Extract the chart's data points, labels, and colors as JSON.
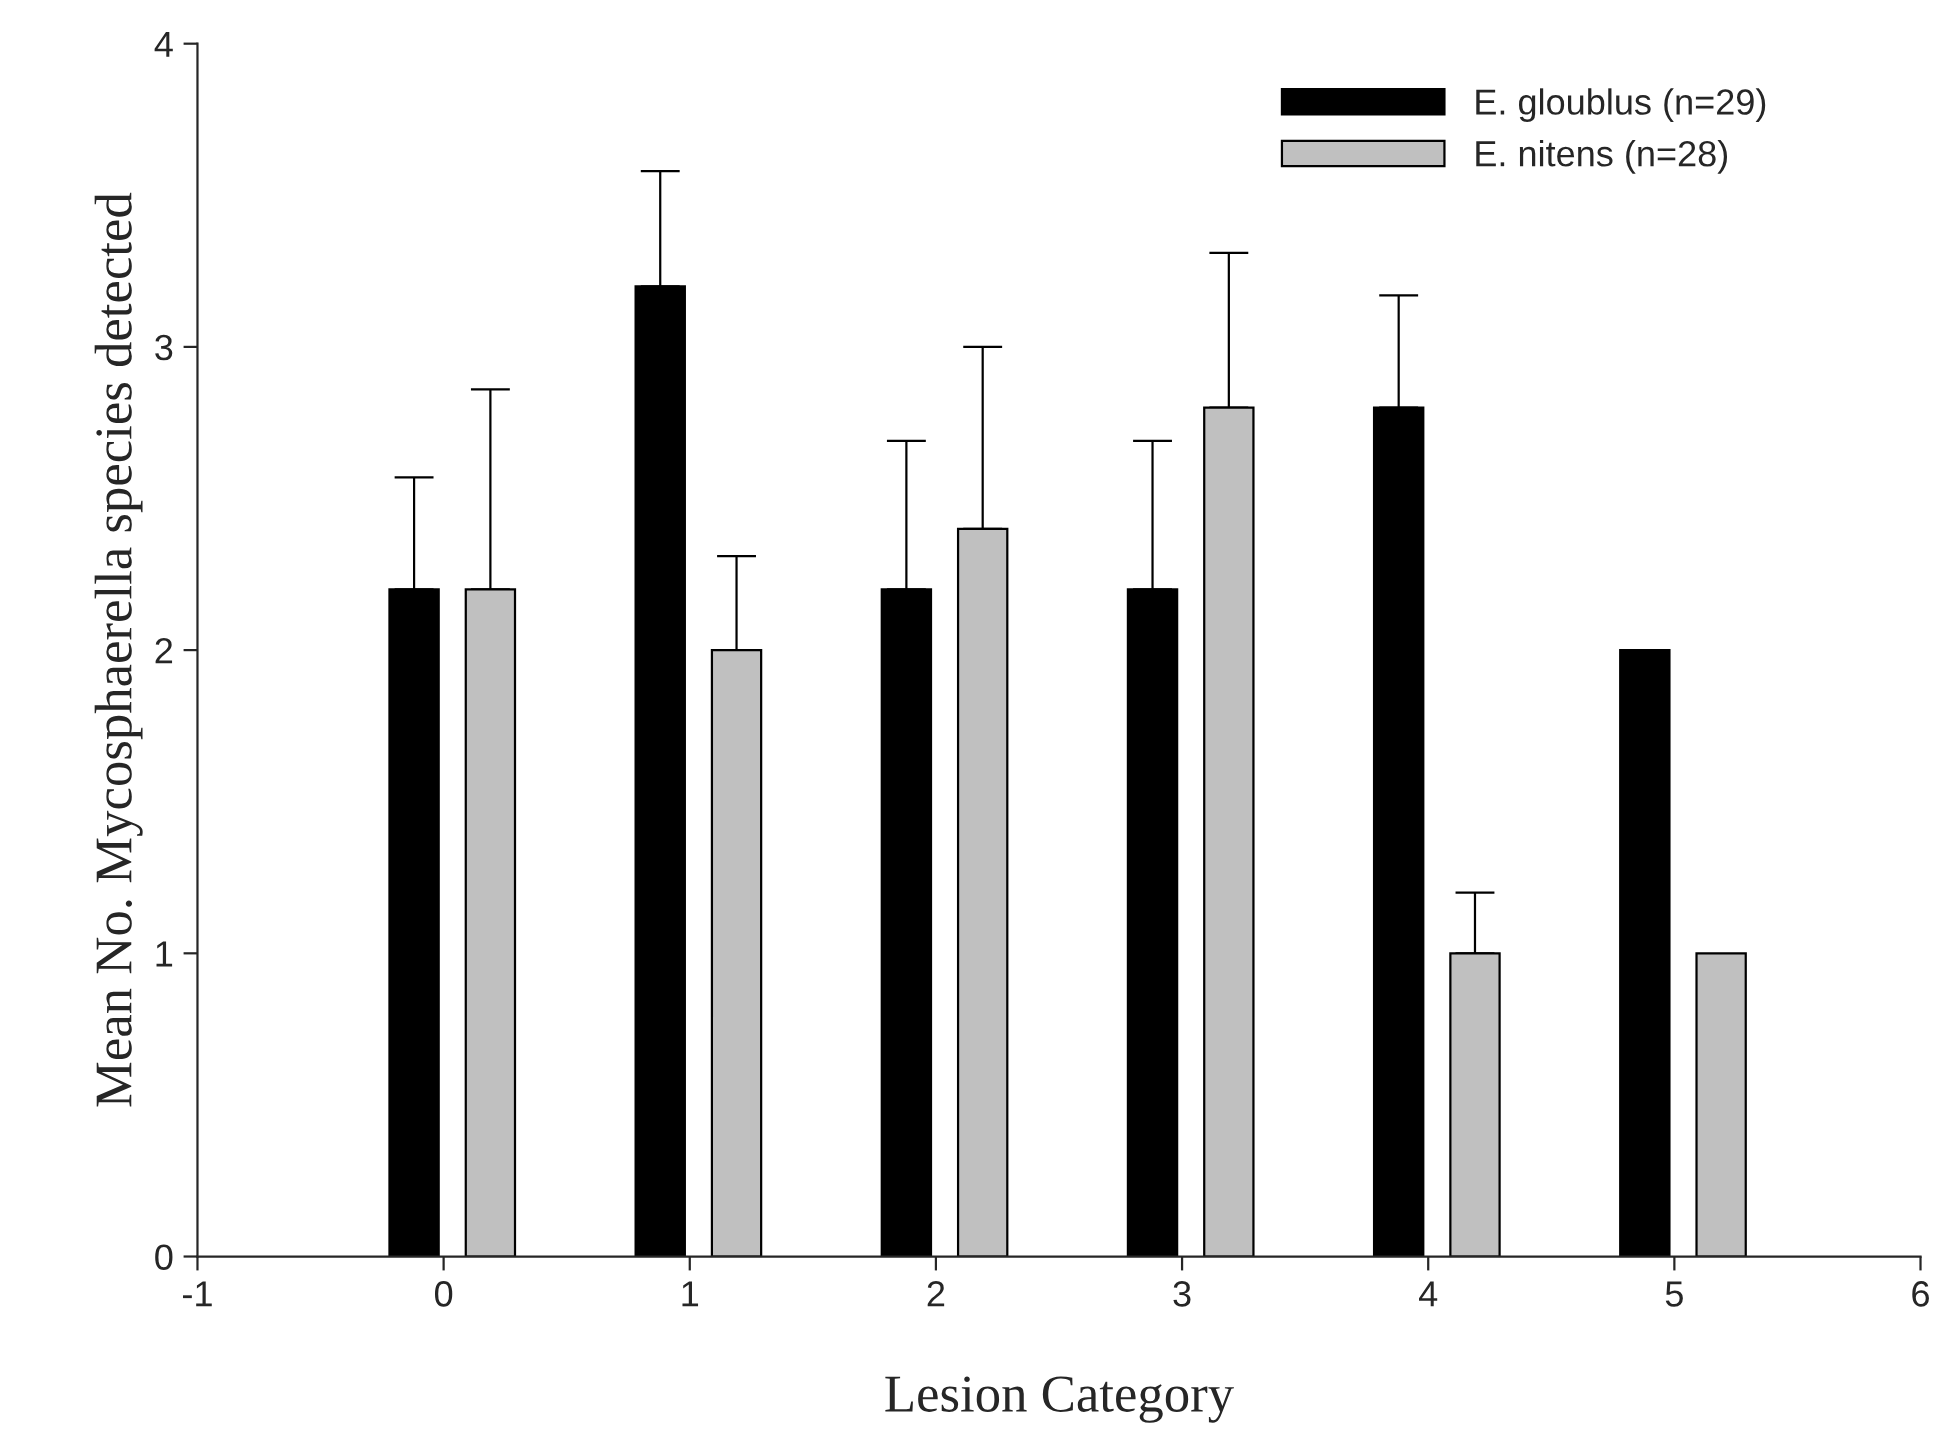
{
  "chart_data": {
    "type": "bar",
    "xlabel": "Lesion Category",
    "ylabel": "Mean No. Mycosphaerella species detected",
    "series": [
      {
        "name": "E. gloublus (n=29)",
        "color": "#000000",
        "x": [
          -0.12,
          0.88,
          1.88,
          2.88,
          3.88,
          4.88
        ],
        "values": [
          2.2,
          3.2,
          2.2,
          2.2,
          2.8,
          2.0
        ],
        "errors": [
          [
            2.2,
            2.57
          ],
          [
            3.2,
            3.58
          ],
          [
            2.2,
            2.69
          ],
          [
            2.2,
            2.69
          ],
          [
            2.8,
            3.17
          ],
          null
        ]
      },
      {
        "name": "E. nitens (n=28)",
        "color": "#c0c0c0",
        "x": [
          0.19,
          1.19,
          2.19,
          3.19,
          4.19,
          5.19
        ],
        "values": [
          2.2,
          2.0,
          2.4,
          2.8,
          1.0,
          1.0
        ],
        "errors": [
          [
            2.2,
            2.86
          ],
          [
            2.0,
            2.31
          ],
          [
            2.4,
            3.0
          ],
          [
            2.8,
            3.31
          ],
          [
            1.0,
            1.2
          ],
          null
        ]
      }
    ],
    "xlim": [
      -1,
      6
    ],
    "xticks": [
      -1,
      0,
      1,
      2,
      3,
      4,
      5,
      6
    ],
    "ylim": [
      0,
      4
    ],
    "yticks": [
      0,
      1,
      2,
      3,
      4
    ],
    "grid": false,
    "legend": "top right"
  }
}
